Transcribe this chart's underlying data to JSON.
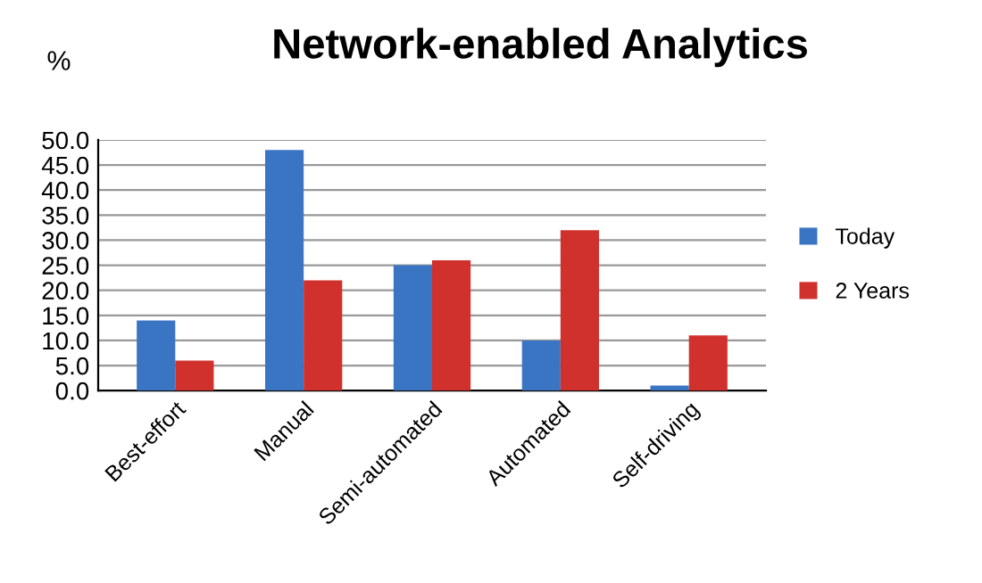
{
  "chart_data": {
    "type": "bar",
    "title": "Network-enabled Analytics",
    "ylabel": "%",
    "categories": [
      "Best-effort",
      "Manual",
      "Semi-automated",
      "Automated",
      "Self-driving"
    ],
    "series": [
      {
        "name": "Today",
        "color": "#3a75c4",
        "values": [
          14,
          48,
          25,
          10,
          1
        ]
      },
      {
        "name": "2 Years",
        "color": "#d0312d",
        "values": [
          6,
          22,
          26,
          32,
          11
        ]
      }
    ],
    "ylim": [
      0,
      50
    ],
    "yticks": [
      {
        "value": 0,
        "label": "0.0"
      },
      {
        "value": 5,
        "label": "5.0"
      },
      {
        "value": 10,
        "label": "10.0"
      },
      {
        "value": 15,
        "label": "15.0"
      },
      {
        "value": 20,
        "label": "20.0"
      },
      {
        "value": 25,
        "label": "25.0"
      },
      {
        "value": 30,
        "label": "30.0"
      },
      {
        "value": 35,
        "label": "35.0"
      },
      {
        "value": 40,
        "label": "40.0"
      },
      {
        "value": 45,
        "label": "45.0"
      },
      {
        "value": 50,
        "label": "50.0"
      }
    ],
    "grid": "y",
    "legend": "right"
  }
}
